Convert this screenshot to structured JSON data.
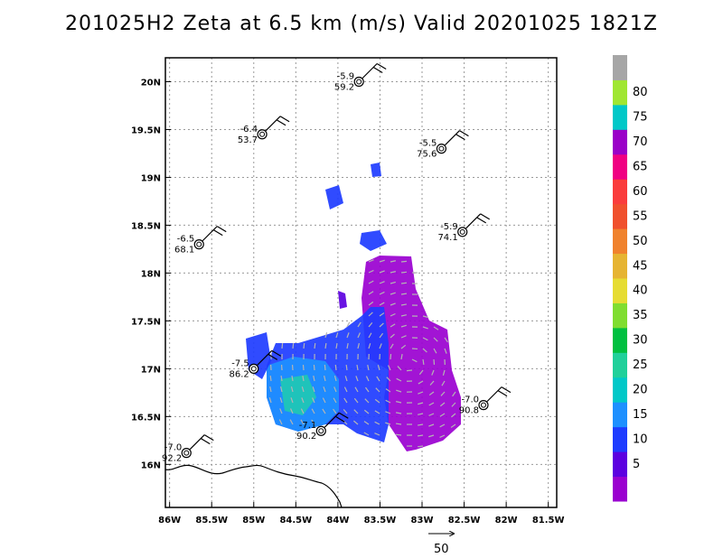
{
  "title": "201025H2 Zeta at 6.5 km (m/s) Valid 20201025 1821Z",
  "map": {
    "lon_range": [
      -86.05,
      -81.4
    ],
    "lat_range": [
      15.55,
      20.25
    ],
    "lon_ticks": [
      {
        "v": -86.0,
        "label": "86W"
      },
      {
        "v": -85.5,
        "label": "85.5W"
      },
      {
        "v": -85.0,
        "label": "85W"
      },
      {
        "v": -84.5,
        "label": "84.5W"
      },
      {
        "v": -84.0,
        "label": "84W"
      },
      {
        "v": -83.5,
        "label": "83.5W"
      },
      {
        "v": -83.0,
        "label": "83W"
      },
      {
        "v": -82.5,
        "label": "82.5W"
      },
      {
        "v": -82.0,
        "label": "82W"
      },
      {
        "v": -81.5,
        "label": "81.5W"
      }
    ],
    "lat_ticks": [
      {
        "v": 16.0,
        "label": "16N"
      },
      {
        "v": 16.5,
        "label": "16.5N"
      },
      {
        "v": 17.0,
        "label": "17N"
      },
      {
        "v": 17.5,
        "label": "17.5N"
      },
      {
        "v": 18.0,
        "label": "18N"
      },
      {
        "v": 18.5,
        "label": "18.5N"
      },
      {
        "v": 19.0,
        "label": "19N"
      },
      {
        "v": 19.5,
        "label": "19.5N"
      },
      {
        "v": 20.0,
        "label": "20N"
      }
    ],
    "grid": true
  },
  "colorbar": {
    "labels": [
      "5",
      "10",
      "15",
      "20",
      "25",
      "30",
      "35",
      "40",
      "45",
      "50",
      "55",
      "60",
      "65",
      "70",
      "75",
      "80"
    ],
    "colors": [
      "#9a00d0",
      "#5c00e0",
      "#1e3cff",
      "#1e90ff",
      "#00c8c8",
      "#20d09a",
      "#00c040",
      "#80dd30",
      "#e6dc32",
      "#e6b432",
      "#f0822d",
      "#f0502d",
      "#fa3c3c",
      "#f00082",
      "#9a00c8",
      "#00c8c8",
      "#a0e632",
      "#a6a6a6"
    ]
  },
  "stations": [
    {
      "lon": -83.75,
      "lat": 20.0,
      "top": "-5.9",
      "bottom": "59.2"
    },
    {
      "lon": -84.9,
      "lat": 19.45,
      "top": "-6.4",
      "bottom": "53.7"
    },
    {
      "lon": -82.77,
      "lat": 19.3,
      "top": "-5.5",
      "bottom": "75.6"
    },
    {
      "lon": -85.65,
      "lat": 18.3,
      "top": "-6.5",
      "bottom": "68.1"
    },
    {
      "lon": -82.52,
      "lat": 18.43,
      "top": "-5.9",
      "bottom": "74.1"
    },
    {
      "lon": -85.0,
      "lat": 17.0,
      "top": "-7.5",
      "bottom": "86.2"
    },
    {
      "lon": -84.2,
      "lat": 16.35,
      "top": "-7.1",
      "bottom": "90.2"
    },
    {
      "lon": -82.27,
      "lat": 16.62,
      "top": "-7.0",
      "bottom": "90.8"
    },
    {
      "lon": -85.8,
      "lat": 16.12,
      "top": "-7.0",
      "bottom": "92.2"
    }
  ],
  "vector_reference": {
    "label": "50"
  }
}
